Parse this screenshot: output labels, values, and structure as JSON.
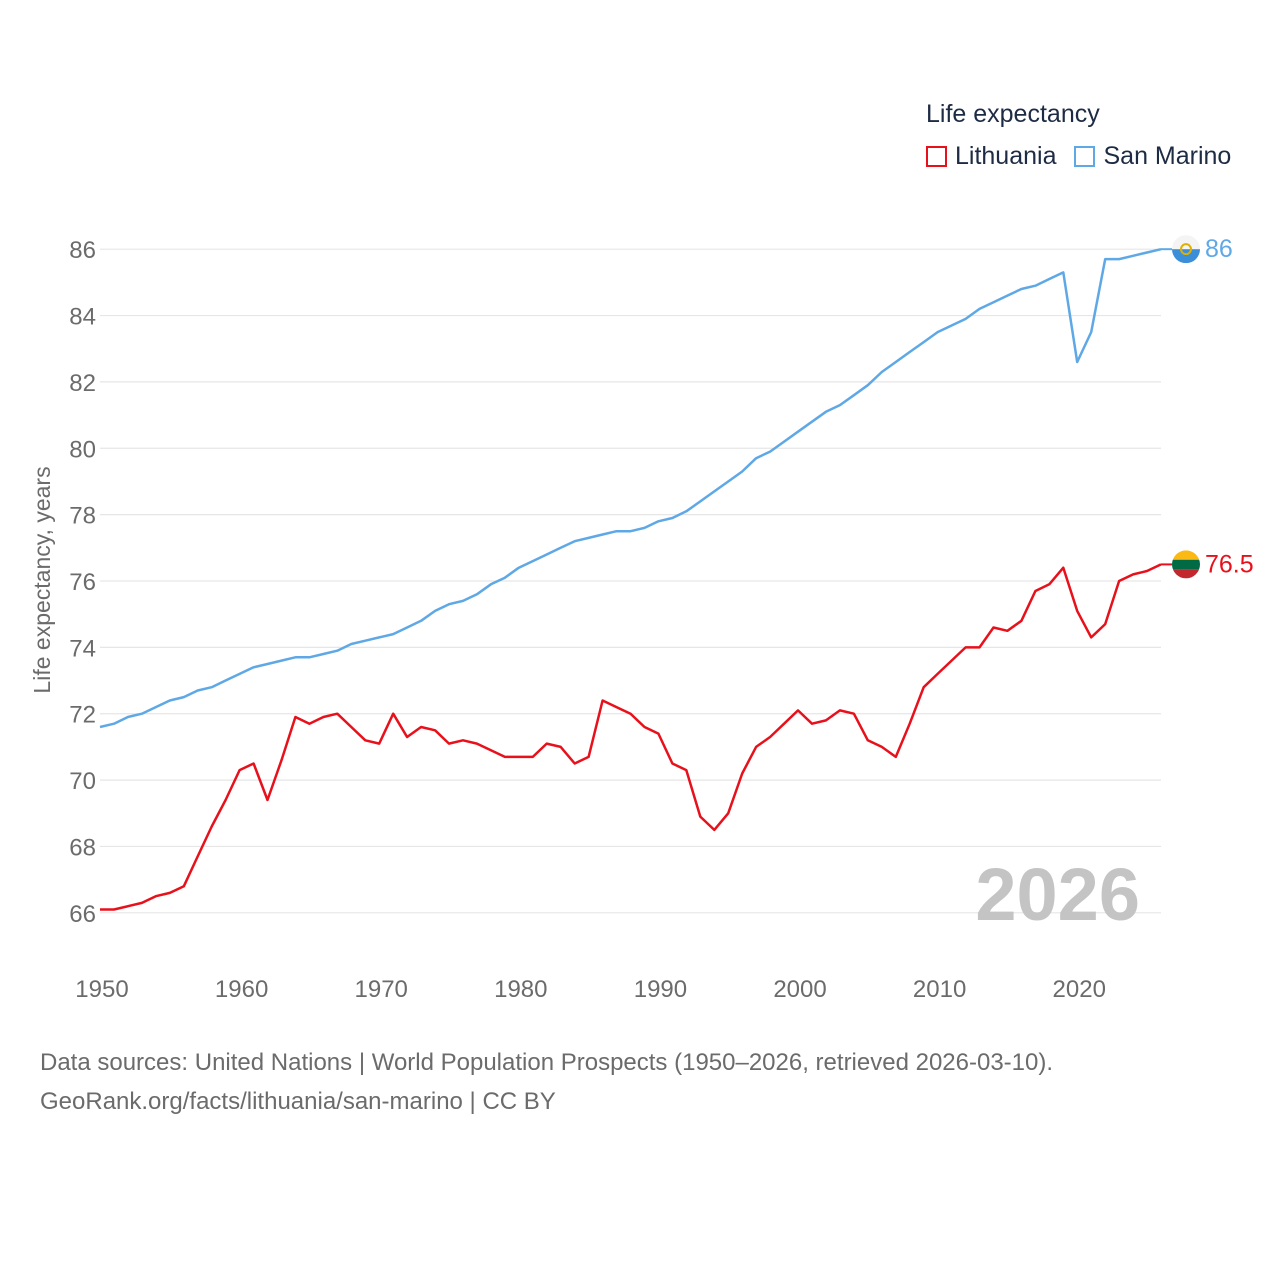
{
  "legend": {
    "title": "Life expectancy",
    "items": [
      {
        "label": "Lithuania",
        "color": "#e8111b"
      },
      {
        "label": "San Marino",
        "color": "#5fa8e6"
      }
    ]
  },
  "source": {
    "line1": "Data sources: United Nations | World Population Prospects (1950–2026, retrieved 2026-03-10).",
    "line2": "GeoRank.org/facts/lithuania/san-marino | CC BY"
  },
  "chart_data": {
    "type": "line",
    "title": "Life expectancy",
    "ylabel": "Life expectancy, years",
    "xlabel": "",
    "watermark": "2026",
    "xlim": [
      1950,
      2026
    ],
    "ylim": [
      65,
      87
    ],
    "yticks": [
      66,
      68,
      70,
      72,
      74,
      76,
      78,
      80,
      82,
      84,
      86
    ],
    "xticks": [
      1950,
      1960,
      1970,
      1980,
      1990,
      2000,
      2010,
      2020
    ],
    "grid": true,
    "x": [
      1950,
      1951,
      1952,
      1953,
      1954,
      1955,
      1956,
      1957,
      1958,
      1959,
      1960,
      1961,
      1962,
      1963,
      1964,
      1965,
      1966,
      1967,
      1968,
      1969,
      1970,
      1971,
      1972,
      1973,
      1974,
      1975,
      1976,
      1977,
      1978,
      1979,
      1980,
      1981,
      1982,
      1983,
      1984,
      1985,
      1986,
      1987,
      1988,
      1989,
      1990,
      1991,
      1992,
      1993,
      1994,
      1995,
      1996,
      1997,
      1998,
      1999,
      2000,
      2001,
      2002,
      2003,
      2004,
      2005,
      2006,
      2007,
      2008,
      2009,
      2010,
      2011,
      2012,
      2013,
      2014,
      2015,
      2016,
      2017,
      2018,
      2019,
      2020,
      2021,
      2022,
      2023,
      2024,
      2025,
      2026
    ],
    "series": [
      {
        "name": "Lithuania",
        "color": "#e8111b",
        "end_label": "76.5",
        "flag": "lithuania-flag-icon",
        "values": [
          66.1,
          66.1,
          66.2,
          66.3,
          66.5,
          66.6,
          66.8,
          67.7,
          68.6,
          69.4,
          70.3,
          70.5,
          69.4,
          70.6,
          71.9,
          71.7,
          71.9,
          72.0,
          71.6,
          71.2,
          71.1,
          72.0,
          71.3,
          71.6,
          71.5,
          71.1,
          71.2,
          71.1,
          70.9,
          70.7,
          70.7,
          70.7,
          71.1,
          71.0,
          70.5,
          70.7,
          72.4,
          72.2,
          72.0,
          71.6,
          71.4,
          70.5,
          70.3,
          68.9,
          68.5,
          69.0,
          70.2,
          71.0,
          71.3,
          71.7,
          72.1,
          71.7,
          71.8,
          72.1,
          72.0,
          71.2,
          71.0,
          70.7,
          71.7,
          72.8,
          73.2,
          73.6,
          74.0,
          74.0,
          74.6,
          74.5,
          74.8,
          75.7,
          75.9,
          76.4,
          75.1,
          74.3,
          74.7,
          76.0,
          76.2,
          76.3,
          76.5
        ]
      },
      {
        "name": "San Marino",
        "color": "#5fa8e6",
        "end_label": "86",
        "flag": "san-marino-flag-icon",
        "values": [
          71.6,
          71.7,
          71.9,
          72.0,
          72.2,
          72.4,
          72.5,
          72.7,
          72.8,
          73.0,
          73.2,
          73.4,
          73.5,
          73.6,
          73.7,
          73.7,
          73.8,
          73.9,
          74.1,
          74.2,
          74.3,
          74.4,
          74.6,
          74.8,
          75.1,
          75.3,
          75.4,
          75.6,
          75.9,
          76.1,
          76.4,
          76.6,
          76.8,
          77.0,
          77.2,
          77.3,
          77.4,
          77.5,
          77.5,
          77.6,
          77.8,
          77.9,
          78.1,
          78.4,
          78.7,
          79.0,
          79.3,
          79.7,
          79.9,
          80.2,
          80.5,
          80.8,
          81.1,
          81.3,
          81.6,
          81.9,
          82.3,
          82.6,
          82.9,
          83.2,
          83.5,
          83.7,
          83.9,
          84.2,
          84.4,
          84.6,
          84.8,
          84.9,
          85.1,
          85.3,
          82.6,
          83.5,
          85.7,
          85.7,
          85.8,
          85.9,
          86.0
        ]
      }
    ]
  }
}
